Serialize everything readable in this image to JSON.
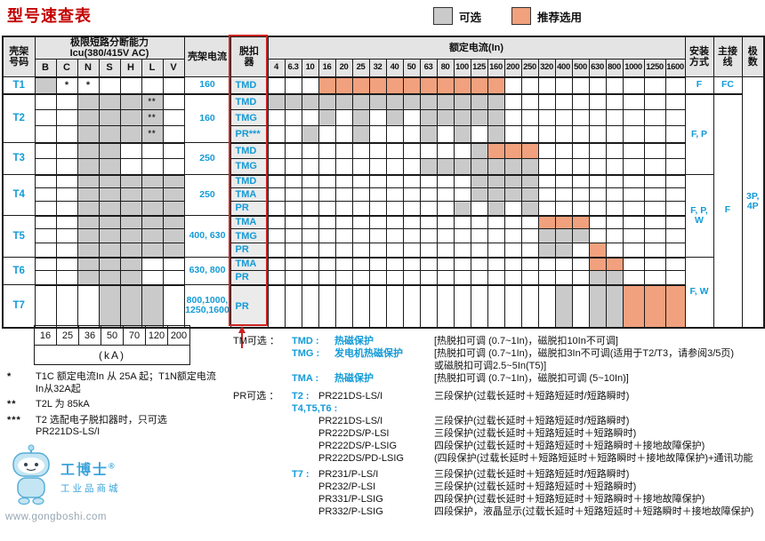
{
  "title": "型号速查表",
  "legend": {
    "optional": "可选",
    "recommended": "推荐选用"
  },
  "colors": {
    "optional_cell": "#cacaca",
    "recommended_cell": "#f1a17d",
    "accent_blue": "#149bd7",
    "title_red": "#c40000",
    "highlight_red": "#cc2222",
    "header_bg": "#e4e4e4",
    "trip_bg": "#ebebeb"
  },
  "header": {
    "frame": "壳架\n号码",
    "icu_group": "极限短路分断能力",
    "icu_sub": "Icu(380/415V AC)",
    "icu_cols": [
      "B",
      "C",
      "N",
      "S",
      "H",
      "L",
      "V"
    ],
    "frame_current": "壳架电流",
    "trip": "脱扣\n器",
    "rated": "额定电流(In)",
    "install": "安装\n方式",
    "wiring": "主接\n线",
    "poles": "极\n数"
  },
  "currents": [
    "4",
    "6.3",
    "10",
    "16",
    "20",
    "25",
    "32",
    "40",
    "50",
    "63",
    "80",
    "100",
    "125",
    "160",
    "200",
    "250",
    "320",
    "400",
    "500",
    "630",
    "800",
    "1000",
    "1250",
    "1600"
  ],
  "frames": [
    {
      "id": "T1",
      "frame_current": "160",
      "rows": [
        {
          "trip": "TMD",
          "icu": [
            "g",
            "*",
            "*",
            "",
            "",
            "",
            ""
          ],
          "cells": [
            0,
            0,
            0,
            2,
            2,
            2,
            2,
            2,
            2,
            2,
            2,
            2,
            2,
            2,
            0,
            0,
            0,
            0,
            0,
            0,
            0,
            0,
            0,
            0
          ]
        }
      ]
    },
    {
      "id": "T2",
      "frame_current": "160",
      "rows": [
        {
          "trip": "TMD",
          "icu": [
            "",
            "",
            "g",
            "g",
            "g",
            "g**",
            ""
          ],
          "cells": [
            1,
            1,
            1,
            1,
            1,
            1,
            1,
            1,
            1,
            1,
            1,
            1,
            1,
            1,
            0,
            0,
            0,
            0,
            0,
            0,
            0,
            0,
            0,
            0
          ]
        },
        {
          "trip": "TMG",
          "icu": [
            "",
            "",
            "g",
            "g",
            "g",
            "g**",
            ""
          ],
          "cells": [
            0,
            0,
            0,
            1,
            0,
            1,
            0,
            1,
            0,
            1,
            1,
            1,
            1,
            1,
            0,
            0,
            0,
            0,
            0,
            0,
            0,
            0,
            0,
            0
          ]
        },
        {
          "trip": "PR***",
          "icu": [
            "",
            "",
            "g",
            "g",
            "g",
            "g**",
            ""
          ],
          "cells": [
            0,
            0,
            1,
            0,
            0,
            1,
            0,
            0,
            0,
            1,
            0,
            1,
            0,
            1,
            0,
            0,
            0,
            0,
            0,
            0,
            0,
            0,
            0,
            0
          ]
        }
      ]
    },
    {
      "id": "T3",
      "frame_current": "250",
      "rows": [
        {
          "trip": "TMD",
          "icu": [
            "",
            "",
            "g",
            "g",
            "",
            "",
            ""
          ],
          "cells": [
            0,
            0,
            0,
            0,
            0,
            0,
            0,
            0,
            0,
            0,
            0,
            0,
            1,
            2,
            2,
            2,
            0,
            0,
            0,
            0,
            0,
            0,
            0,
            0
          ]
        },
        {
          "trip": "TMG",
          "icu": [
            "",
            "",
            "g",
            "g",
            "",
            "",
            ""
          ],
          "cells": [
            0,
            0,
            0,
            0,
            0,
            0,
            0,
            0,
            0,
            1,
            1,
            1,
            1,
            1,
            1,
            1,
            0,
            0,
            0,
            0,
            0,
            0,
            0,
            0
          ]
        }
      ]
    },
    {
      "id": "T4",
      "frame_current": "250",
      "rows": [
        {
          "trip": "TMD",
          "icu": [
            "",
            "",
            "g",
            "g",
            "g",
            "g",
            "g"
          ],
          "cells": [
            0,
            0,
            0,
            0,
            0,
            0,
            0,
            0,
            0,
            0,
            0,
            0,
            1,
            1,
            1,
            1,
            0,
            0,
            0,
            0,
            0,
            0,
            0,
            0
          ]
        },
        {
          "trip": "TMA",
          "icu": [
            "",
            "",
            "g",
            "g",
            "g",
            "g",
            "g"
          ],
          "cells": [
            0,
            0,
            0,
            0,
            0,
            0,
            0,
            0,
            0,
            0,
            0,
            0,
            1,
            1,
            1,
            1,
            0,
            0,
            0,
            0,
            0,
            0,
            0,
            0
          ]
        },
        {
          "trip": "PR",
          "icu": [
            "",
            "",
            "g",
            "g",
            "g",
            "g",
            "g"
          ],
          "cells": [
            0,
            0,
            0,
            0,
            0,
            0,
            0,
            0,
            0,
            0,
            0,
            1,
            0,
            1,
            0,
            1,
            0,
            0,
            0,
            0,
            0,
            0,
            0,
            0
          ]
        }
      ]
    },
    {
      "id": "T5",
      "frame_current": "400, 630",
      "rows": [
        {
          "trip": "TMA",
          "icu": [
            "",
            "",
            "g",
            "g",
            "g",
            "g",
            "g"
          ],
          "cells": [
            0,
            0,
            0,
            0,
            0,
            0,
            0,
            0,
            0,
            0,
            0,
            0,
            0,
            0,
            0,
            0,
            2,
            2,
            2,
            0,
            0,
            0,
            0,
            0
          ]
        },
        {
          "trip": "TMG",
          "icu": [
            "",
            "",
            "g",
            "g",
            "g",
            "g",
            "g"
          ],
          "cells": [
            0,
            0,
            0,
            0,
            0,
            0,
            0,
            0,
            0,
            0,
            0,
            0,
            0,
            0,
            0,
            0,
            1,
            1,
            1,
            0,
            0,
            0,
            0,
            0
          ]
        },
        {
          "trip": "PR",
          "icu": [
            "",
            "",
            "g",
            "g",
            "g",
            "g",
            "g"
          ],
          "cells": [
            0,
            0,
            0,
            0,
            0,
            0,
            0,
            0,
            0,
            0,
            0,
            0,
            0,
            0,
            0,
            0,
            1,
            1,
            0,
            2,
            0,
            0,
            0,
            0
          ]
        }
      ]
    },
    {
      "id": "T6",
      "frame_current": "630, 800",
      "rows": [
        {
          "trip": "TMA",
          "icu": [
            "",
            "",
            "g",
            "g",
            "g",
            "",
            ""
          ],
          "cells": [
            0,
            0,
            0,
            0,
            0,
            0,
            0,
            0,
            0,
            0,
            0,
            0,
            0,
            0,
            0,
            0,
            0,
            0,
            0,
            2,
            2,
            0,
            0,
            0
          ]
        },
        {
          "trip": "PR",
          "icu": [
            "",
            "",
            "g",
            "g",
            "g",
            "",
            ""
          ],
          "cells": [
            0,
            0,
            0,
            0,
            0,
            0,
            0,
            0,
            0,
            0,
            0,
            0,
            0,
            0,
            0,
            0,
            0,
            0,
            0,
            1,
            1,
            0,
            0,
            0
          ]
        }
      ]
    },
    {
      "id": "T7",
      "frame_current": "800,1000,\n1250,1600",
      "rows": [
        {
          "trip": "PR",
          "icu": [
            "",
            "",
            "",
            "g",
            "g",
            "g",
            ""
          ],
          "cells": [
            0,
            0,
            0,
            0,
            0,
            0,
            0,
            0,
            0,
            0,
            0,
            0,
            0,
            0,
            0,
            0,
            0,
            1,
            0,
            1,
            1,
            2,
            2,
            2
          ]
        }
      ]
    }
  ],
  "install_groups": [
    {
      "label": "F",
      "rows": 1
    },
    {
      "label": "F, P",
      "rows": 5
    },
    {
      "label": "F, P, W",
      "rows": 6
    },
    {
      "label": "F, W",
      "rows": 3
    }
  ],
  "wiring_groups": [
    {
      "label": "FC",
      "rows": 1
    },
    {
      "label": "F",
      "rows": 14
    }
  ],
  "poles_groups": [
    {
      "label": "3P,\n4P",
      "rows": 15
    }
  ],
  "ka_row": {
    "values": [
      "16",
      "25",
      "36",
      "50",
      "70",
      "120",
      "200"
    ],
    "unit": "(kA)"
  },
  "footnotes": [
    {
      "mark": "*",
      "text": "T1C 额定电流In 从 25A 起；T1N额定电流\nIn从32A起"
    },
    {
      "mark": "**",
      "text": "T2L 为 85kA"
    },
    {
      "mark": "***",
      "text": "T2 选配电子脱扣器时，只可选\nPR221DS-LS/I"
    }
  ],
  "tm_section": {
    "label": "TM可选 ：",
    "lines": [
      {
        "name": "TMD :",
        "desc": "热磁保护",
        "bracket": "[热脱扣可调  (0.7~1In)，磁脱扣10In不可调]"
      },
      {
        "name": "TMG :",
        "desc": "发电机热磁保护",
        "bracket": "[热脱扣可调  (0.7~1In)，磁脱扣3In不可调(适用于T2/T3，请参阅3/5页)"
      },
      {
        "name": "",
        "desc": "",
        "bracket": "或磁脱扣可调2.5~5In(T5)]"
      },
      {
        "name": "TMA :",
        "desc": "热磁保护",
        "bracket": "[热脱扣可调  (0.7~1In)，磁脱扣可调  (5~10In)]"
      }
    ]
  },
  "pr_section": {
    "label": "PR可选 ：",
    "lines": [
      {
        "group": "T2 :",
        "model": "PR221DS-LS/I",
        "desc": "三段保护(过载长延时＋短路短延时/短路瞬时)",
        "wide": false,
        "gap": false
      },
      {
        "group": "T4,T5,T6 :",
        "model": "",
        "desc": "",
        "wide": true,
        "gap": false
      },
      {
        "group": "",
        "model": "PR221DS-LS/I",
        "desc": "三段保护(过载长延时＋短路短延时/短路瞬时)",
        "wide": false,
        "gap": false
      },
      {
        "group": "",
        "model": "PR222DS/P-LSI",
        "desc": "三段保护(过载长延时＋短路短延时＋短路瞬时)",
        "wide": false,
        "gap": false
      },
      {
        "group": "",
        "model": "PR222DS/P-LSIG",
        "desc": "四段保护(过载长延时＋短路短延时＋短路瞬时＋接地故障保护)",
        "wide": false,
        "gap": false
      },
      {
        "group": "",
        "model": "PR222DS/PD-LSIG",
        "desc": "(四段保护(过载长延时＋短路短延时＋短路瞬时＋接地故障保护)+通讯功能",
        "wide": false,
        "gap": false
      },
      {
        "group": "T7 :",
        "model": "PR231/P-LS/I",
        "desc": "三段保护(过载长延时＋短路短延时/短路瞬时)",
        "wide": false,
        "gap": true
      },
      {
        "group": "",
        "model": "PR232/P-LSI",
        "desc": "三段保护(过载长延时＋短路短延时＋短路瞬时)",
        "wide": false,
        "gap": false
      },
      {
        "group": "",
        "model": "PR331/P-LSIG",
        "desc": "四段保护(过载长延时＋短路短延时＋短路瞬时＋接地故障保护)",
        "wide": false,
        "gap": false
      },
      {
        "group": "",
        "model": "PR332/P-LSIG",
        "desc": "四段保护，液晶显示(过载长延时＋短路短延时＋短路瞬时＋接地故障保护)",
        "wide": false,
        "gap": false
      }
    ]
  },
  "watermark": {
    "title": "工博士",
    "reg": "®",
    "subtitle": "工业品商城",
    "url": "www.gongboshi.com"
  }
}
